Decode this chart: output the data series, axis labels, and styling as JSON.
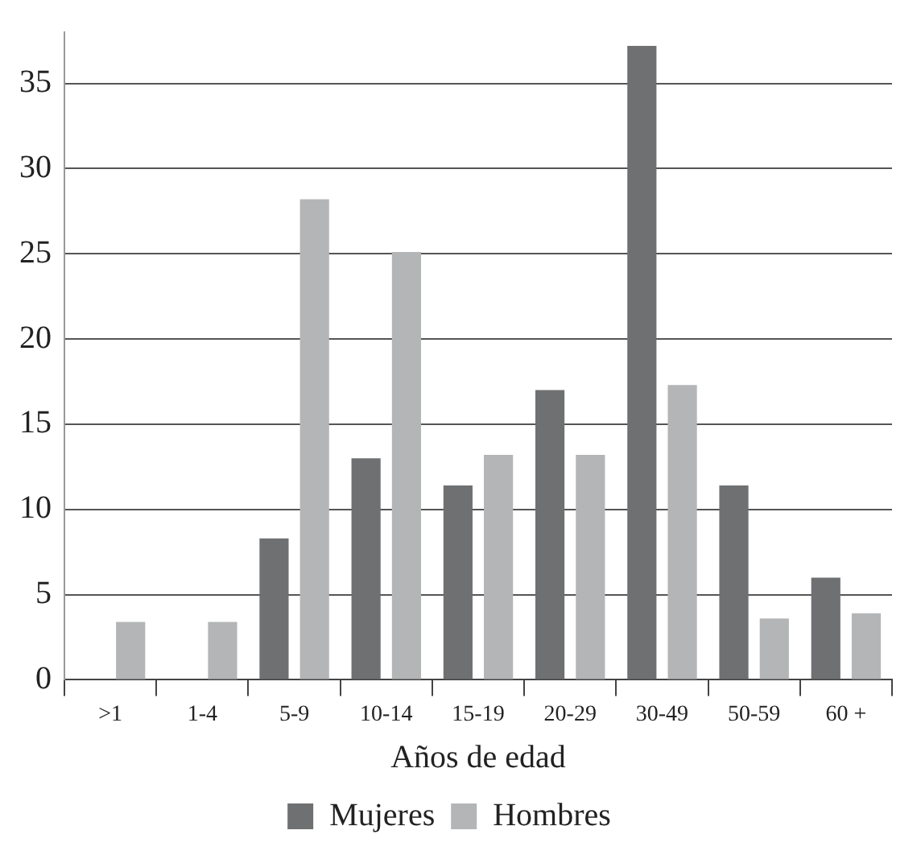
{
  "chart_data": {
    "type": "bar",
    "xlabel": "Años de edad",
    "categories": [
      ">1",
      "1-4",
      "5-9",
      "10-14",
      "15-19",
      "20-29",
      "30-49",
      "50-59",
      "60 +"
    ],
    "series": [
      {
        "name": "Mujeres",
        "color": "#6f7071",
        "values": [
          null,
          null,
          8.3,
          13,
          11.4,
          17,
          37.2,
          11.4,
          6
        ]
      },
      {
        "name": "Hombres",
        "color": "#b3b5b6",
        "values": [
          3.4,
          3.4,
          28.2,
          25.1,
          13.2,
          13.2,
          17.3,
          3.6,
          3.9
        ]
      }
    ],
    "ylim": [
      0,
      38
    ],
    "yticks": [
      0,
      5,
      10,
      15,
      20,
      25,
      30,
      35
    ],
    "grid": "y",
    "legend": "bottom"
  }
}
